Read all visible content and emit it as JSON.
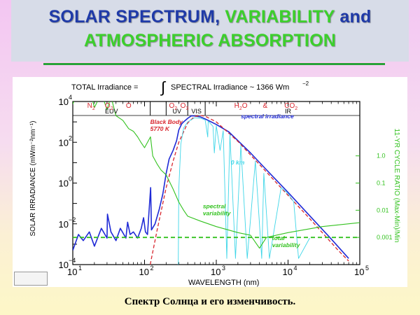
{
  "slide": {
    "title_line1_part1": "SOLAR SPECTRUM, ",
    "title_line1_part2": "VARIABILITY",
    "title_line1_part3": " and",
    "title_line2": "ATMOSPHERIC ABSORPTION",
    "caption": "Спектр Солнца и его изменчивость.",
    "colors": {
      "title_blue": "#1f3aa8",
      "title_green": "#3ccf2c",
      "rule_green": "#2aa238",
      "spectrum_blue": "#1f2ad6",
      "blackbody_red": "#d8262e",
      "atmosphere_cyan": "#3fd6e8",
      "variability_green": "#33c21f",
      "region_red": "#d8262e"
    }
  },
  "chart_data": {
    "type": "line",
    "header": {
      "left": "TOTAL Irradiance =",
      "integral": "∫",
      "right": "SPECTRAL Irradiance ~ 1366 Wm",
      "exp": "−2"
    },
    "xlabel": "WAVELENGTH (nm)",
    "ylabel": "SOLAR IRRADIANCE (mWm⁻²nm⁻¹)",
    "y2label": "11-YR CYCLE RATIO (Max-Min)/Min",
    "xscale": "log",
    "xlim": [
      10,
      100000
    ],
    "ylim": [
      0.0001,
      10000
    ],
    "x_ticks": [
      {
        "v": 10,
        "base": "10",
        "exp": "1"
      },
      {
        "v": 100,
        "base": "10",
        "exp": "2"
      },
      {
        "v": 1000,
        "base": "10",
        "exp": "3"
      },
      {
        "v": 10000,
        "base": "10",
        "exp": "4"
      },
      {
        "v": 100000,
        "base": "10",
        "exp": "5"
      }
    ],
    "y_ticks": [
      {
        "v": 10000,
        "base": "10",
        "exp": "4"
      },
      {
        "v": 100,
        "base": "10",
        "exp": "2"
      },
      {
        "v": 1,
        "base": "10",
        "exp": "0"
      },
      {
        "v": 0.01,
        "base": "10",
        "exp": "−2"
      },
      {
        "v": 0.0001,
        "base": "10",
        "exp": "−4"
      }
    ],
    "y2_ticks": [
      {
        "v": 1,
        "label": "1.0"
      },
      {
        "v": 0.1,
        "label": "0.1"
      },
      {
        "v": 0.01,
        "label": "0.01"
      },
      {
        "v": 0.001,
        "label": "0.001"
      }
    ],
    "y2lim": [
      0.0001,
      100
    ],
    "regions": [
      {
        "label": "EUV",
        "from": 10,
        "to": 120
      },
      {
        "label": "UV",
        "from": 200,
        "to": 400
      },
      {
        "label": "VIS",
        "from": 400,
        "to": 700
      },
      {
        "label": "IR",
        "from": 1000,
        "to": 100000
      }
    ],
    "region_boundaries": [
      120,
      200,
      400,
      700
    ],
    "absorbers": [
      {
        "label": "N",
        "sub": "2",
        "x": 18
      },
      {
        "label": "O",
        "sub": "2",
        "x": 32
      },
      {
        "label": "O",
        "sub": "",
        "x": 60
      },
      {
        "label": "O",
        "sub": "2",
        "x": 250
      },
      {
        "label": "O",
        "sub": "3",
        "x": 360
      },
      {
        "label": "H",
        "sub": "2",
        "tail": "O",
        "x": 2200
      },
      {
        "label": "&",
        "sub": "",
        "x": 4800
      },
      {
        "label": "CO",
        "sub": "2",
        "x": 11000
      }
    ],
    "series": [
      {
        "name": "spectral irradiance",
        "color": "#1f2ad6",
        "points": [
          [
            10,
            0.0005
          ],
          [
            12,
            0.003
          ],
          [
            14,
            0.0015
          ],
          [
            17,
            0.004
          ],
          [
            20,
            0.0008
          ],
          [
            25,
            0.006
          ],
          [
            30,
            0.002
          ],
          [
            30.4,
            0.03
          ],
          [
            34,
            0.004
          ],
          [
            40,
            0.0015
          ],
          [
            46,
            0.006
          ],
          [
            55,
            0.002
          ],
          [
            58,
            0.012
          ],
          [
            63,
            0.003
          ],
          [
            70,
            0.004
          ],
          [
            80,
            0.002
          ],
          [
            90,
            0.006
          ],
          [
            97,
            0.02
          ],
          [
            103,
            0.004
          ],
          [
            110,
            0.003
          ],
          [
            121.6,
            0.6
          ],
          [
            125,
            0.005
          ],
          [
            140,
            0.01
          ],
          [
            160,
            0.05
          ],
          [
            180,
            0.3
          ],
          [
            200,
            3
          ],
          [
            220,
            15
          ],
          [
            250,
            40
          ],
          [
            280,
            120
          ],
          [
            300,
            400
          ],
          [
            330,
            800
          ],
          [
            350,
            1000
          ],
          [
            400,
            1500
          ],
          [
            450,
            2000
          ],
          [
            500,
            1950
          ],
          [
            550,
            1850
          ],
          [
            600,
            1750
          ],
          [
            700,
            1400
          ],
          [
            800,
            1100
          ],
          [
            1000,
            750
          ],
          [
            1500,
            320
          ],
          [
            2000,
            120
          ],
          [
            3000,
            30
          ],
          [
            5000,
            4.5
          ],
          [
            10000,
            0.35
          ],
          [
            20000,
            0.025
          ],
          [
            40000,
            0.0018
          ],
          [
            70000,
            0.0002
          ]
        ]
      },
      {
        "name": "Black Body 5770 K",
        "color": "#d8262e",
        "points": [
          [
            120,
            0.0001
          ],
          [
            150,
            0.005
          ],
          [
            200,
            0.6
          ],
          [
            250,
            12
          ],
          [
            300,
            100
          ],
          [
            400,
            900
          ],
          [
            500,
            1850
          ],
          [
            600,
            2050
          ],
          [
            700,
            1900
          ],
          [
            1000,
            1000
          ],
          [
            2000,
            110
          ],
          [
            5000,
            3.5
          ],
          [
            10000,
            0.25
          ],
          [
            20000,
            0.018
          ],
          [
            50000,
            0.0005
          ],
          [
            70000,
            0.00015
          ]
        ]
      },
      {
        "name": "0 km",
        "color": "#3fd6e8",
        "points": [
          [
            295,
            0.0001
          ],
          [
            300,
            0.5
          ],
          [
            320,
            80
          ],
          [
            350,
            500
          ],
          [
            400,
            1000
          ],
          [
            500,
            1600
          ],
          [
            600,
            1500
          ],
          [
            700,
            1250
          ],
          [
            760,
            180
          ],
          [
            770,
            1100
          ],
          [
            900,
            600
          ],
          [
            940,
            30
          ],
          [
            1000,
            650
          ],
          [
            1130,
            40
          ],
          [
            1250,
            380
          ],
          [
            1400,
            0.0002
          ],
          [
            1550,
            250
          ],
          [
            1850,
            0.0002
          ],
          [
            2200,
            70
          ],
          [
            2700,
            0.0002
          ],
          [
            3500,
            12
          ],
          [
            4300,
            0.0002
          ],
          [
            4600,
            3
          ],
          [
            5500,
            0.0002
          ],
          [
            8000,
            0.6
          ],
          [
            10000,
            0.3
          ],
          [
            12000,
            0.12
          ],
          [
            14000,
            0.0002
          ],
          [
            20000,
            0.002
          ]
        ]
      },
      {
        "name": "spectral variability",
        "color": "#33c21f",
        "points": [
          [
            10,
            80
          ],
          [
            12,
            300
          ],
          [
            14,
            120
          ],
          [
            17,
            300
          ],
          [
            20,
            60
          ],
          [
            25,
            200
          ],
          [
            30,
            50
          ],
          [
            34,
            150
          ],
          [
            40,
            30
          ],
          [
            50,
            20
          ],
          [
            60,
            10
          ],
          [
            70,
            8
          ],
          [
            80,
            5
          ],
          [
            90,
            3
          ],
          [
            100,
            2
          ],
          [
            121,
            5
          ],
          [
            130,
            1
          ],
          [
            150,
            0.5
          ],
          [
            170,
            0.3
          ],
          [
            200,
            0.2
          ],
          [
            250,
            0.06
          ],
          [
            300,
            0.02
          ],
          [
            350,
            0.01
          ],
          [
            400,
            0.006
          ],
          [
            600,
            0.004
          ],
          [
            1000,
            0.0025
          ],
          [
            2000,
            0.0015
          ],
          [
            3000,
            0.0012
          ],
          [
            4000,
            0.0004
          ],
          [
            5000,
            0.001
          ],
          [
            10000,
            0.0015
          ],
          [
            30000,
            0.0025
          ],
          [
            100000,
            0.0035
          ]
        ]
      }
    ],
    "total_variability_level": 0.001,
    "annotations": [
      {
        "name": "black-body",
        "lines": [
          "Black Body",
          "5770 K"
        ],
        "x": 120,
        "y": 800
      },
      {
        "name": "spectral-irradiance",
        "lines": [
          "spectral irradiance"
        ],
        "x": 2200,
        "y": 1500
      },
      {
        "name": "zero-km",
        "lines": [
          "0 km"
        ],
        "x": 1600,
        "y": 8
      },
      {
        "name": "spectral-variability",
        "lines": [
          "spectral",
          "variability"
        ],
        "x": 650,
        "y": 0.012
      },
      {
        "name": "total-variability",
        "lines": [
          "total",
          "variability"
        ],
        "x": 6000,
        "y": 0.0008
      }
    ]
  }
}
